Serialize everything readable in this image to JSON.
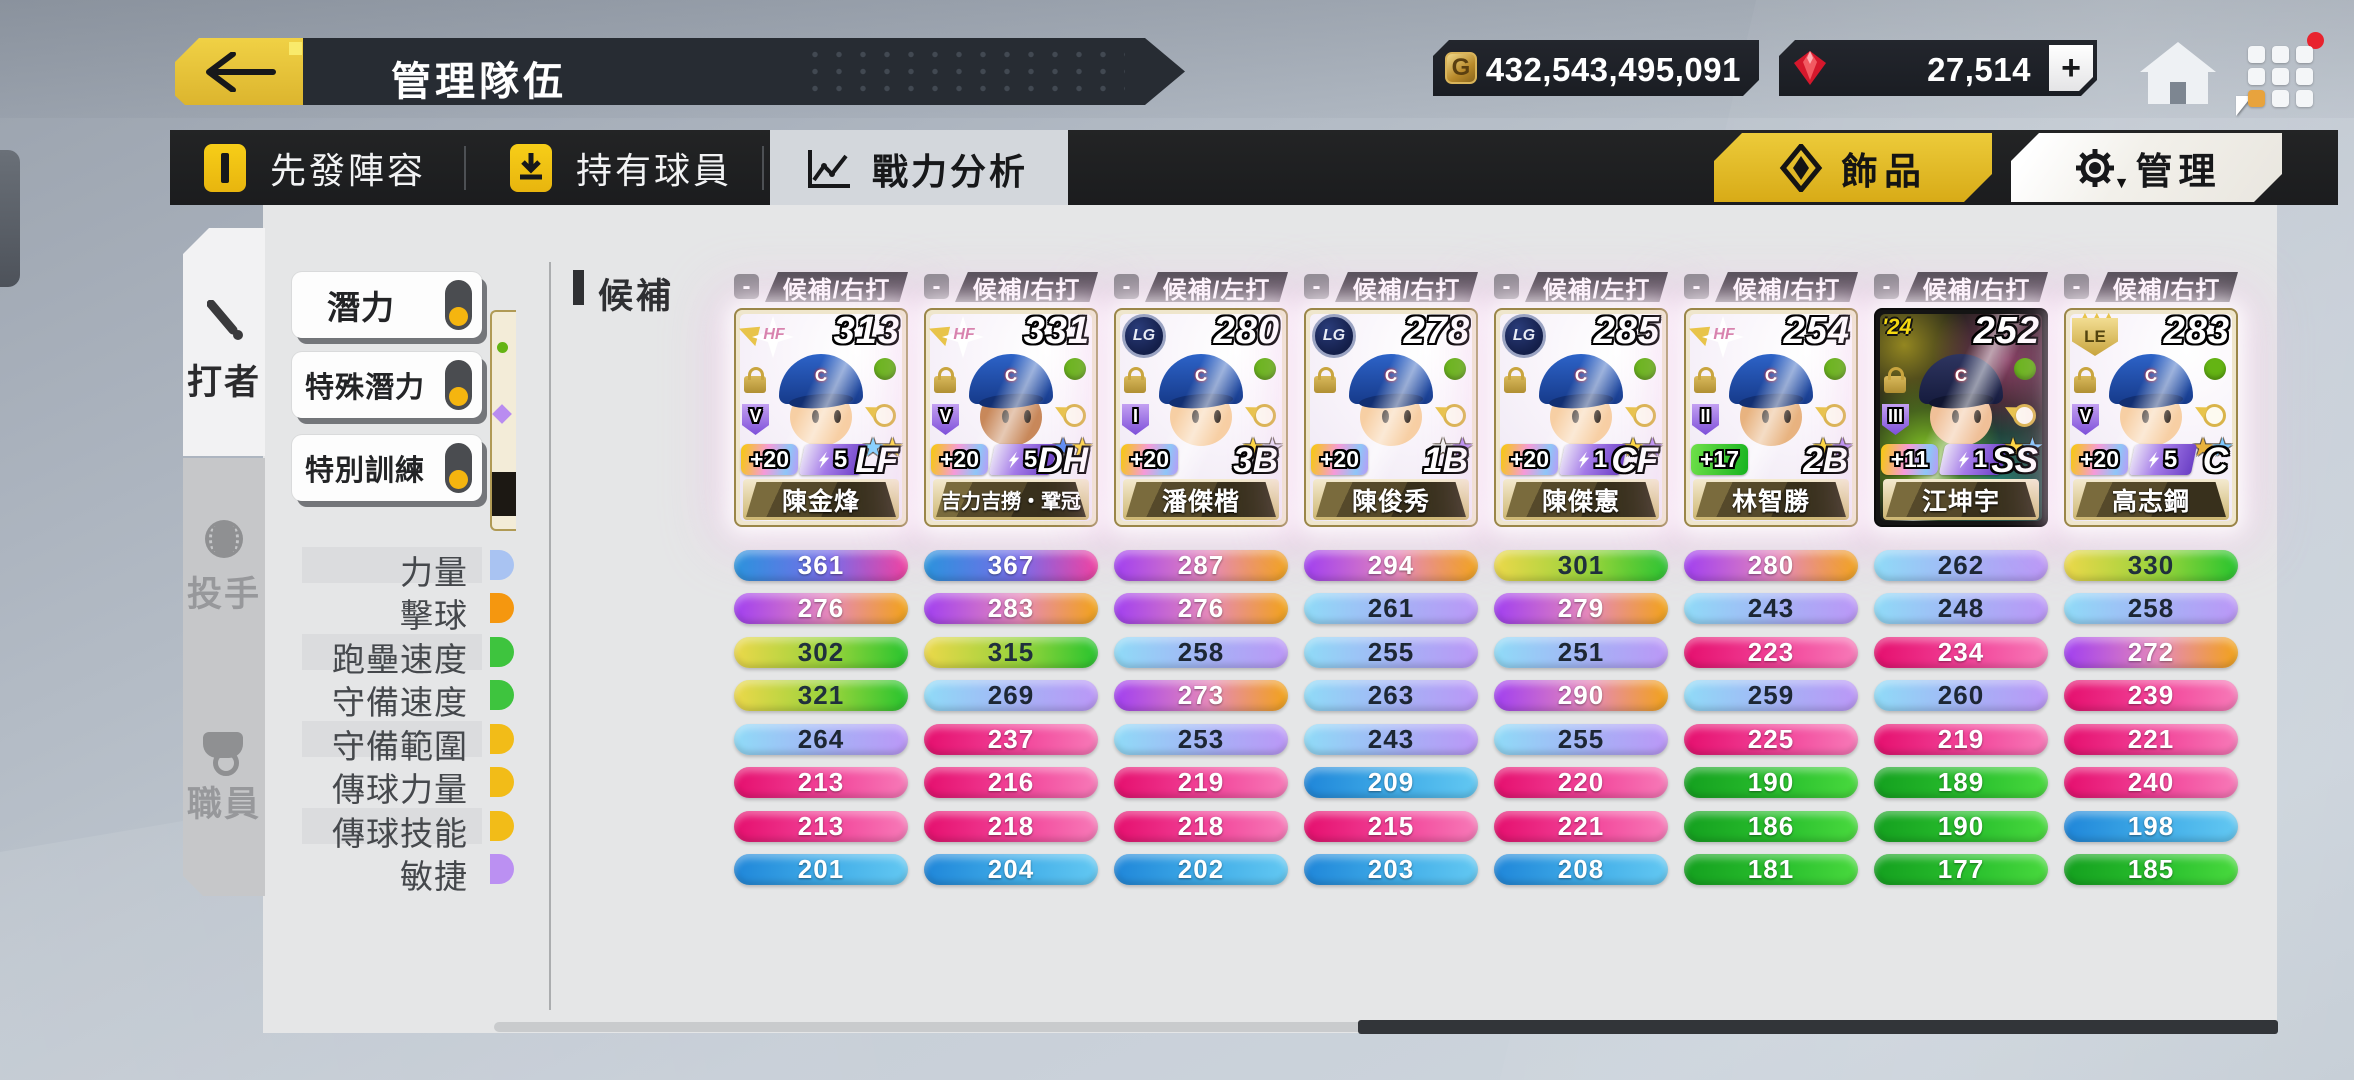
{
  "header": {
    "title": "管理隊伍",
    "gold": "432,543,495,091",
    "gems": "27,514",
    "plus_label": "+"
  },
  "tabs": {
    "lineup": "先發陣容",
    "roster": "持有球員",
    "analysis": "戰力分析",
    "accessories": "飾品",
    "manage": "管理",
    "manage_caret": "▼"
  },
  "sidebar": {
    "batter": "打者",
    "pitcher": "投手",
    "staff": "職員"
  },
  "filters": [
    "潛力",
    "特殊潛力",
    "特別訓練"
  ],
  "section": {
    "label": "候補"
  },
  "stats": {
    "labels": [
      "力量",
      "擊球",
      "跑壘速度",
      "守備速度",
      "守備範圍",
      "傳球力量",
      "傳球技能",
      "敏捷"
    ]
  },
  "ui": {
    "minus": "-",
    "star": "★"
  },
  "colors": {
    "accent_yellow": "#edc43a",
    "strip_dark": "#1e1f21",
    "panel_gray": "#e5e6e7",
    "notification_red": "#e8232e",
    "status_green": "#64b414"
  },
  "players": [
    {
      "name": "陳金烽",
      "rating": "313",
      "slot_label": "候補/右打",
      "position": "LF",
      "emblem": "HF",
      "roman": "V",
      "plus": "+20",
      "plus_style": "rainbow",
      "bolt": "5",
      "stars": [
        "#86d2ff",
        "#ffd83d"
      ],
      "dark": false,
      "skin": "#f7cfa4",
      "stats": [
        361,
        276,
        302,
        321,
        264,
        213,
        213,
        201
      ]
    },
    {
      "name": "吉力吉撈・鞏冠",
      "rating": "331",
      "slot_label": "候補/右打",
      "position": "DH",
      "emblem": "HF",
      "roman": "V",
      "plus": "+20",
      "plus_style": "rainbow",
      "bolt": "5",
      "stars": [
        "#5b8df5",
        "#ffd83d"
      ],
      "dark": false,
      "skin": "#c8885a",
      "stats": [
        367,
        283,
        315,
        269,
        237,
        216,
        218,
        204
      ]
    },
    {
      "name": "潘傑楷",
      "rating": "280",
      "slot_label": "候補/左打",
      "position": "3B",
      "emblem": "LG",
      "roman": "I",
      "plus": "+20",
      "plus_style": "rainbow",
      "bolt": "",
      "stars": [
        "#ffd83d",
        "#e6dcf5"
      ],
      "dark": false,
      "skin": "#f7cfa4",
      "stats": [
        287,
        276,
        258,
        273,
        253,
        219,
        218,
        202
      ]
    },
    {
      "name": "陳俊秀",
      "rating": "278",
      "slot_label": "候補/右打",
      "position": "1B",
      "emblem": "LG",
      "roman": "",
      "plus": "+20",
      "plus_style": "rainbow",
      "bolt": "",
      "stars": [
        "#f2f2f2",
        "#b78df2"
      ],
      "dark": false,
      "skin": "#f7cfa4",
      "stats": [
        294,
        261,
        255,
        263,
        243,
        209,
        215,
        203
      ]
    },
    {
      "name": "陳傑憲",
      "rating": "285",
      "slot_label": "候補/左打",
      "position": "CF",
      "emblem": "LG",
      "roman": "",
      "plus": "+20",
      "plus_style": "rainbow",
      "bolt": "1",
      "stars": [
        "#ffd83d",
        "#b78df2"
      ],
      "dark": false,
      "skin": "#f7cfa4",
      "stats": [
        301,
        279,
        251,
        290,
        255,
        220,
        221,
        208
      ]
    },
    {
      "name": "林智勝",
      "rating": "254",
      "slot_label": "候補/右打",
      "position": "2B",
      "emblem": "HF",
      "roman": "II",
      "plus": "+17",
      "plus_style": "green",
      "bolt": "",
      "stars": [
        "#ffd83d",
        "#b78df2"
      ],
      "dark": false,
      "skin": "#e8b380",
      "stats": [
        280,
        243,
        223,
        259,
        225,
        190,
        186,
        181
      ]
    },
    {
      "name": "江坤宇",
      "rating": "252",
      "slot_label": "候補/右打",
      "position": "SS",
      "emblem": "'24",
      "roman": "III",
      "plus": "+11",
      "plus_style": "rainbow",
      "bolt": "1",
      "stars": [
        "#ffd83d",
        "#7ec9ff"
      ],
      "dark": true,
      "skin": "#f0c098",
      "stats": [
        262,
        248,
        234,
        260,
        219,
        189,
        190,
        177
      ]
    },
    {
      "name": "高志鋼",
      "rating": "283",
      "slot_label": "候補/右打",
      "position": "C",
      "emblem": "LE",
      "roman": "V",
      "plus": "+20",
      "plus_style": "rainbow",
      "bolt": "5",
      "stars": [
        "#e8b23d",
        "#7ec9ff"
      ],
      "dark": false,
      "skin": "#f7cfa4",
      "stats": [
        330,
        258,
        272,
        239,
        221,
        240,
        198,
        185
      ]
    }
  ],
  "clipped_column": {
    "pill_colors": [
      "#a9c3f2",
      "#f5970f",
      "#3ec43e",
      "#3ec43e",
      "#f2bc18",
      "#f2bc18",
      "#f2bc18",
      "#bb90f2"
    ]
  },
  "tiers": [
    {
      "min": 331,
      "bg": "linear-gradient(90deg,#2a93dd,#7a6ce8 55%,#f03fa0)",
      "text": "#ffffff"
    },
    {
      "min": 301,
      "bg": "linear-gradient(90deg,#ecd84a,#8ed23a 60%,#27c42e)",
      "text": "#20303d"
    },
    {
      "min": 271,
      "bg": "linear-gradient(90deg,#a13ff0,#e589b9 55%,#f2a318)",
      "text": "#ffffff"
    },
    {
      "min": 241,
      "bg": "linear-gradient(90deg,#8fdbf7,#a8aef5 60%,#bb97f7)",
      "text": "#1d2734"
    },
    {
      "min": 211,
      "bg": "linear-gradient(90deg,#e50f6e,#f2459a 55%,#f77ab8)",
      "text": "#ffffff"
    },
    {
      "min": 191,
      "bg": "linear-gradient(90deg,#1f86d9,#42aee8 55%,#63c8f2)",
      "text": "#ffffff"
    },
    {
      "min": 0,
      "bg": "linear-gradient(90deg,#14a01f,#2cc22f 60%,#49d93e)",
      "text": "#ffffff"
    }
  ]
}
